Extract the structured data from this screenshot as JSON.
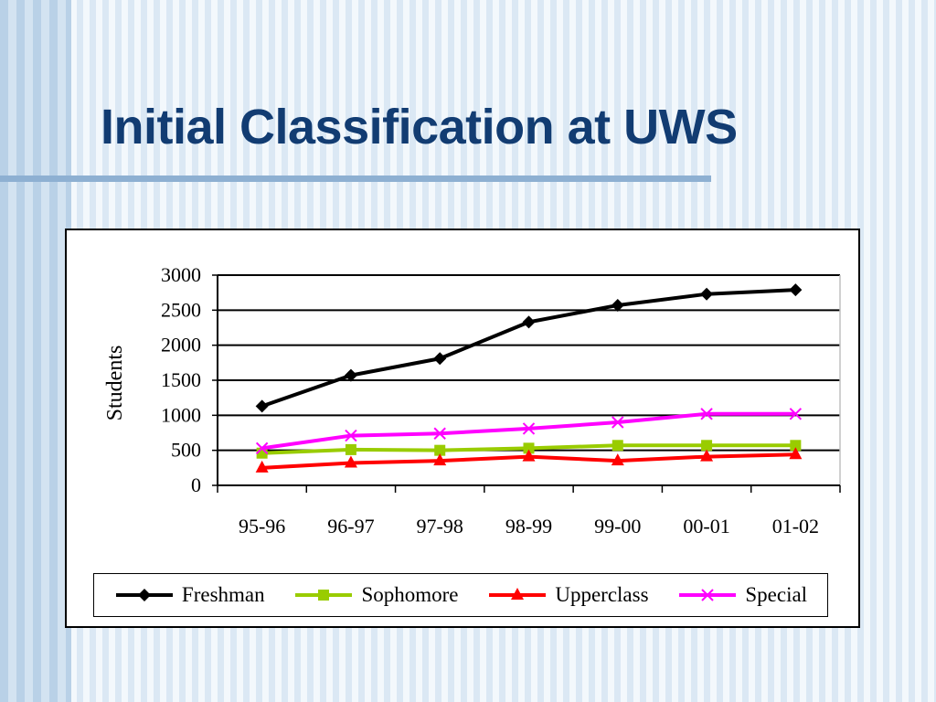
{
  "slide": {
    "title": "Initial Classification at UWS"
  },
  "chart_data": {
    "type": "line",
    "title": "",
    "xlabel": "",
    "ylabel": "Students",
    "categories": [
      "95-96",
      "96-97",
      "97-98",
      "98-99",
      "99-00",
      "00-01",
      "01-02"
    ],
    "ylim": [
      0,
      3000
    ],
    "yticks": [
      0,
      500,
      1000,
      1500,
      2000,
      2500,
      3000
    ],
    "grid": "horizontal",
    "legend_position": "bottom",
    "series": [
      {
        "name": "Freshman",
        "color": "#000000",
        "marker": "diamond",
        "values": [
          1130,
          1570,
          1810,
          2330,
          2570,
          2730,
          2790
        ]
      },
      {
        "name": "Sophomore",
        "color": "#99cc00",
        "marker": "square",
        "values": [
          460,
          510,
          500,
          530,
          570,
          570,
          570
        ]
      },
      {
        "name": "Upperclass",
        "color": "#ff0000",
        "marker": "triangle",
        "values": [
          250,
          320,
          350,
          410,
          350,
          410,
          440
        ]
      },
      {
        "name": "Special",
        "color": "#ff00ff",
        "marker": "x",
        "values": [
          530,
          710,
          740,
          810,
          900,
          1020,
          1020
        ]
      }
    ]
  }
}
